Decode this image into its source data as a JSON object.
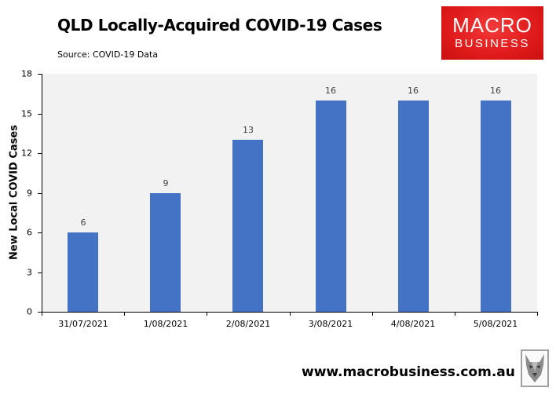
{
  "header": {
    "title": "QLD Locally-Acquired COVID-19 Cases",
    "source": "Source: COVID-19 Data"
  },
  "logo": {
    "line1": "MACRO",
    "line2": "BUSINESS",
    "color": "#e21c1c"
  },
  "footer": {
    "url": "www.macrobusiness.com.au",
    "mascot_icon": "wolf-icon"
  },
  "chart_data": {
    "type": "bar",
    "title": "QLD Locally-Acquired COVID-19 Cases",
    "subtitle": "Source: COVID-19 Data",
    "xlabel": "",
    "ylabel": "New Local COVID Cases",
    "categories": [
      "31/07/2021",
      "1/08/2021",
      "2/08/2021",
      "3/08/2021",
      "4/08/2021",
      "5/08/2021"
    ],
    "values": [
      6,
      9,
      13,
      16,
      16,
      16
    ],
    "ylim": [
      0,
      18
    ],
    "yticks": [
      0,
      3,
      6,
      9,
      12,
      15,
      18
    ],
    "grid": false,
    "legend": null,
    "bar_color": "#4472c4",
    "plot_background": "#f2f2f2",
    "data_labels": true
  }
}
